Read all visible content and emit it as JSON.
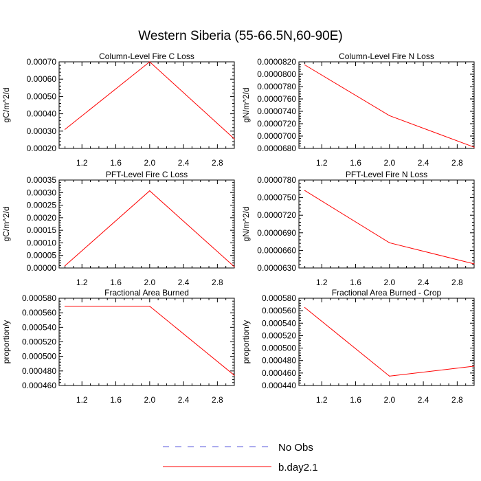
{
  "figure": {
    "title": "Western Siberia (55-66.5N,60-90E)"
  },
  "legend": [
    {
      "label": "No Obs",
      "color": "#5a5adc",
      "dash": true
    },
    {
      "label": "b.day2.1",
      "color": "#ff0000",
      "dash": false
    }
  ],
  "chart_data": [
    {
      "type": "line",
      "title": "Column-Level Fire C Loss",
      "ylabel": "gC/m^2/d",
      "xlim": [
        0.93,
        3.0
      ],
      "ylim": [
        0.0002,
        0.0007
      ],
      "xticks": [
        "1.2",
        "1.6",
        "2.0",
        "2.4",
        "2.8"
      ],
      "yticks": [
        "0.00020",
        "0.00030",
        "0.00040",
        "0.00050",
        "0.00060",
        "0.00070"
      ],
      "series": [
        {
          "name": "b.day2.1",
          "x": [
            1,
            2,
            3
          ],
          "y": [
            0.00031,
            0.0007,
            0.000255
          ]
        }
      ]
    },
    {
      "type": "line",
      "title": "Column-Level Fire N Loss",
      "ylabel": "gN/m^2/d",
      "xlim": [
        0.93,
        3.0
      ],
      "ylim": [
        6.8e-05,
        8.2e-05
      ],
      "xticks": [
        "1.2",
        "1.6",
        "2.0",
        "2.4",
        "2.8"
      ],
      "yticks": [
        "0.0000680",
        "0.0000700",
        "0.0000720",
        "0.0000740",
        "0.0000760",
        "0.0000780",
        "0.0000800",
        "0.0000820"
      ],
      "series": [
        {
          "name": "b.day2.1",
          "x": [
            1,
            2,
            3
          ],
          "y": [
            8.15e-05,
            7.33e-05,
            6.82e-05
          ]
        }
      ]
    },
    {
      "type": "line",
      "title": "PFT-Level Fire C Loss",
      "ylabel": "gC/m^2/d",
      "xlim": [
        0.93,
        3.0
      ],
      "ylim": [
        0.0,
        0.00035
      ],
      "xticks": [
        "1.2",
        "1.6",
        "2.0",
        "2.4",
        "2.8"
      ],
      "yticks": [
        "0.00000",
        "0.00005",
        "0.00010",
        "0.00015",
        "0.00020",
        "0.00025",
        "0.00030",
        "0.00035"
      ],
      "series": [
        {
          "name": "b.day2.1",
          "x": [
            1,
            2,
            3
          ],
          "y": [
            9e-06,
            0.000307,
            5e-06
          ]
        }
      ]
    },
    {
      "type": "line",
      "title": "PFT-Level Fire N Loss",
      "ylabel": "gN/m^2/d",
      "xlim": [
        0.93,
        3.0
      ],
      "ylim": [
        6.3e-05,
        7.8e-05
      ],
      "xticks": [
        "1.2",
        "1.6",
        "2.0",
        "2.4",
        "2.8"
      ],
      "yticks": [
        "0.0000630",
        "0.0000660",
        "0.0000690",
        "0.0000720",
        "0.0000750",
        "0.0000780"
      ],
      "series": [
        {
          "name": "b.day2.1",
          "x": [
            1,
            2,
            3
          ],
          "y": [
            7.62e-05,
            6.73e-05,
            6.37e-05
          ]
        }
      ]
    },
    {
      "type": "line",
      "title": "Fractional Area Burned",
      "ylabel": "proportion/y",
      "xlim": [
        0.93,
        3.0
      ],
      "ylim": [
        0.00046,
        0.00058
      ],
      "xticks": [
        "1.2",
        "1.6",
        "2.0",
        "2.4",
        "2.8"
      ],
      "yticks": [
        "0.000460",
        "0.000480",
        "0.000500",
        "0.000520",
        "0.000540",
        "0.000560",
        "0.000580"
      ],
      "series": [
        {
          "name": "b.day2.1",
          "x": [
            1,
            2,
            3
          ],
          "y": [
            0.000569,
            0.000569,
            0.000474
          ]
        }
      ]
    },
    {
      "type": "line",
      "title": "Fractional Area Burned - Crop",
      "ylabel": "proportion/y",
      "xlim": [
        0.93,
        3.0
      ],
      "ylim": [
        0.00044,
        0.00058
      ],
      "xticks": [
        "1.2",
        "1.6",
        "2.0",
        "2.4",
        "2.8"
      ],
      "yticks": [
        "0.000440",
        "0.000460",
        "0.000480",
        "0.000500",
        "0.000520",
        "0.000540",
        "0.000560",
        "0.000580"
      ],
      "series": [
        {
          "name": "b.day2.1",
          "x": [
            1,
            2,
            3
          ],
          "y": [
            0.000565,
            0.000455,
            0.000471
          ]
        }
      ]
    }
  ]
}
